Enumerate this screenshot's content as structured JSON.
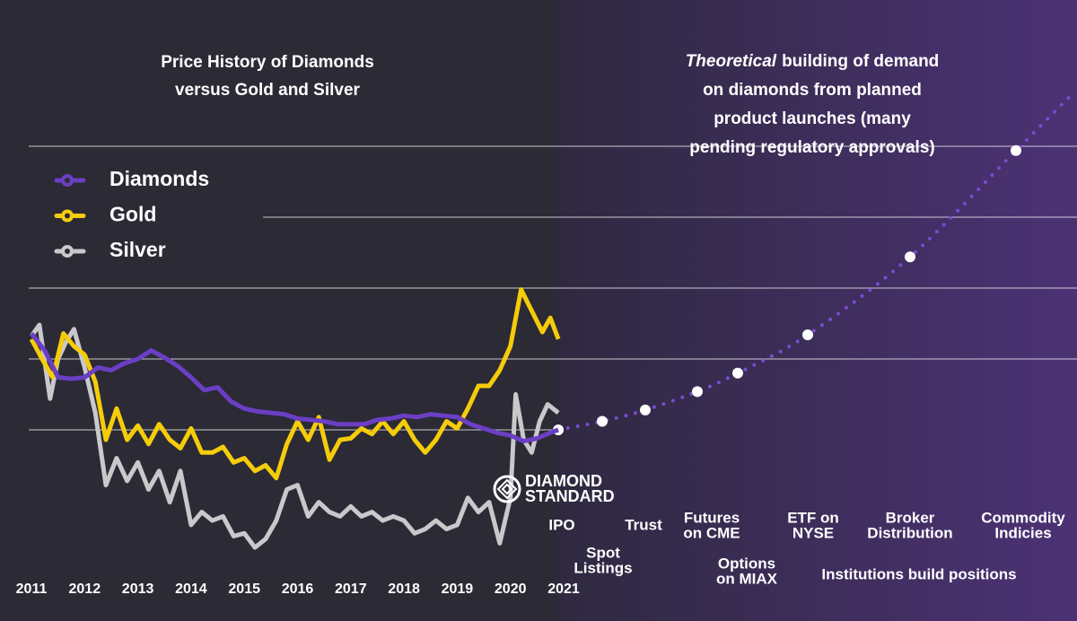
{
  "chart_data": {
    "type": "line",
    "title": [
      "Price History of Diamonds",
      "versus Gold and Silver"
    ],
    "annotation": {
      "italic": "Theoretical",
      "lines": [
        "building of demand",
        "on diamonds from planned",
        "product launches (many",
        "pending regulatory approvals)"
      ]
    },
    "categories": [
      "2011",
      "2012",
      "2013",
      "2014",
      "2015",
      "2016",
      "2017",
      "2018",
      "2019",
      "2020",
      "2021"
    ],
    "xlim": [
      2011,
      2021
    ],
    "ylim": [
      0,
      350
    ],
    "gridlines": [
      100,
      150,
      200,
      250,
      300
    ],
    "series": [
      {
        "name": "Diamonds",
        "color": "#6b3fc4",
        "x": [
          2011.0,
          2011.25,
          2011.5,
          2011.75,
          2012.0,
          2012.25,
          2012.5,
          2012.75,
          2013.0,
          2013.25,
          2013.5,
          2013.75,
          2014.0,
          2014.25,
          2014.5,
          2014.75,
          2015.0,
          2015.25,
          2015.5,
          2015.75,
          2016.0,
          2016.25,
          2016.5,
          2016.75,
          2017.0,
          2017.25,
          2017.5,
          2017.75,
          2018.0,
          2018.25,
          2018.5,
          2018.75,
          2019.0,
          2019.25,
          2019.5,
          2019.75,
          2020.0,
          2020.25,
          2020.5,
          2020.75,
          2020.9
        ],
        "values": [
          168,
          156,
          137,
          136,
          137,
          144,
          142,
          147,
          150,
          156,
          151,
          145,
          137,
          128,
          130,
          120,
          115,
          113,
          112,
          111,
          108,
          107,
          106,
          104,
          104,
          104,
          107,
          108,
          110,
          109,
          111,
          110,
          109,
          104,
          101,
          98,
          96,
          92,
          94,
          98,
          100
        ]
      },
      {
        "name": "Gold",
        "color": "#f5cc0a",
        "x": [
          2011.0,
          2011.2,
          2011.4,
          2011.6,
          2011.8,
          2012.0,
          2012.2,
          2012.4,
          2012.6,
          2012.8,
          2013.0,
          2013.2,
          2013.4,
          2013.6,
          2013.8,
          2014.0,
          2014.2,
          2014.4,
          2014.6,
          2014.8,
          2015.0,
          2015.2,
          2015.4,
          2015.6,
          2015.8,
          2016.0,
          2016.2,
          2016.4,
          2016.6,
          2016.8,
          2017.0,
          2017.2,
          2017.4,
          2017.6,
          2017.8,
          2018.0,
          2018.2,
          2018.4,
          2018.6,
          2018.8,
          2019.0,
          2019.2,
          2019.4,
          2019.6,
          2019.8,
          2020.0,
          2020.2,
          2020.4,
          2020.6,
          2020.75,
          2020.9
        ],
        "values": [
          164,
          150,
          137,
          168,
          159,
          153,
          134,
          93,
          115,
          93,
          103,
          90,
          104,
          93,
          87,
          101,
          84,
          84,
          88,
          77,
          80,
          71,
          75,
          66,
          90,
          106,
          93,
          109,
          79,
          93,
          94,
          101,
          97,
          106,
          97,
          106,
          93,
          84,
          93,
          106,
          101,
          115,
          131,
          131,
          142,
          159,
          199,
          184,
          169,
          179,
          164
        ]
      },
      {
        "name": "Silver",
        "color": "#c9c9cc",
        "x": [
          2011.0,
          2011.15,
          2011.35,
          2011.5,
          2011.65,
          2011.8,
          2012.0,
          2012.2,
          2012.4,
          2012.6,
          2012.8,
          2013.0,
          2013.2,
          2013.4,
          2013.6,
          2013.8,
          2014.0,
          2014.2,
          2014.4,
          2014.6,
          2014.8,
          2015.0,
          2015.2,
          2015.4,
          2015.6,
          2015.8,
          2016.0,
          2016.2,
          2016.4,
          2016.6,
          2016.8,
          2017.0,
          2017.2,
          2017.4,
          2017.6,
          2017.8,
          2018.0,
          2018.2,
          2018.4,
          2018.6,
          2018.8,
          2019.0,
          2019.2,
          2019.4,
          2019.6,
          2019.8,
          2020.0,
          2020.1,
          2020.25,
          2020.4,
          2020.55,
          2020.7,
          2020.9
        ],
        "values": [
          166,
          174,
          122,
          150,
          162,
          171,
          144,
          112,
          61,
          80,
          64,
          77,
          58,
          71,
          49,
          71,
          33,
          42,
          36,
          39,
          25,
          27,
          17,
          23,
          36,
          58,
          61,
          39,
          49,
          42,
          39,
          46,
          39,
          42,
          36,
          39,
          36,
          27,
          30,
          36,
          30,
          33,
          52,
          42,
          49,
          20,
          52,
          125,
          93,
          84,
          106,
          118,
          112
        ]
      }
    ],
    "milestones": [
      {
        "label": [
          "Spot",
          "Listings"
        ],
        "value": 106
      },
      {
        "label": [
          "Trust"
        ],
        "value": 114
      },
      {
        "label": [
          "Futures",
          "on CME"
        ],
        "value": 127
      },
      {
        "label": [
          "Options",
          "on MIAX"
        ],
        "value": 140
      },
      {
        "label": [
          "ETF on",
          "NYSE"
        ],
        "value": 167
      },
      {
        "label": [
          "Broker",
          "Distribution"
        ],
        "value": 222
      },
      {
        "label": [
          "Commodity",
          "Indicies"
        ],
        "value": 297
      }
    ],
    "ipo_label": "IPO",
    "institutions_label": "Institutions build positions",
    "logo": [
      "DIAMOND",
      "STANDARD"
    ]
  }
}
